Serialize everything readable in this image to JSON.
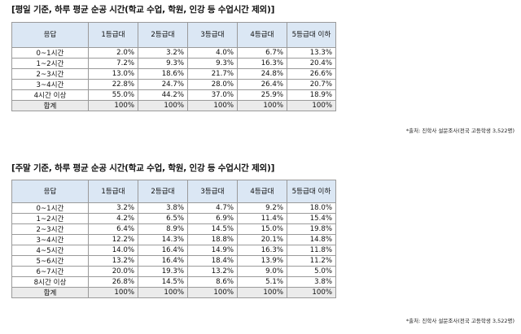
{
  "table1": {
    "title": "[평일 기준, 하루 평균 순공 시간(학교 수업, 학원, 인강 등 수업시간 제외)]",
    "headers": [
      "응답",
      "1등급대",
      "2등급대",
      "3등급대",
      "4등급대",
      "5등급대 이하"
    ],
    "rows": [
      {
        "label": "0~1시간",
        "values": [
          "2.0%",
          "3.2%",
          "4.0%",
          "6.7%",
          "13.3%"
        ]
      },
      {
        "label": "1~2시간",
        "values": [
          "7.2%",
          "9.3%",
          "9.3%",
          "16.3%",
          "20.4%"
        ]
      },
      {
        "label": "2~3시간",
        "values": [
          "13.0%",
          "18.6%",
          "21.7%",
          "24.8%",
          "26.6%"
        ]
      },
      {
        "label": "3~4시간",
        "values": [
          "22.8%",
          "24.7%",
          "28.0%",
          "26.4%",
          "20.7%"
        ]
      },
      {
        "label": "4시간 이상",
        "values": [
          "55.0%",
          "44.2%",
          "37.0%",
          "25.9%",
          "18.9%"
        ]
      }
    ],
    "total": {
      "label": "합계",
      "values": [
        "100%",
        "100%",
        "100%",
        "100%",
        "100%"
      ]
    },
    "source": "*출처: 진학사 설문조사(전국 고등학생 3,522명)"
  },
  "table2": {
    "title": "[주말 기준, 하루 평균 순공 시간(학교 수업, 학원, 인강 등 수업시간 제외)]",
    "headers": [
      "응답",
      "1등급대",
      "2등급대",
      "3등급대",
      "4등급대",
      "5등급대 이하"
    ],
    "rows": [
      {
        "label": "0~1시간",
        "values": [
          "3.2%",
          "3.8%",
          "4.7%",
          "9.2%",
          "18.0%"
        ]
      },
      {
        "label": "1~2시간",
        "values": [
          "4.2%",
          "6.5%",
          "6.9%",
          "11.4%",
          "15.4%"
        ]
      },
      {
        "label": "2~3시간",
        "values": [
          "6.4%",
          "8.9%",
          "14.5%",
          "15.0%",
          "19.8%"
        ]
      },
      {
        "label": "3~4시간",
        "values": [
          "12.2%",
          "14.3%",
          "18.8%",
          "20.1%",
          "14.8%"
        ]
      },
      {
        "label": "4~5시간",
        "values": [
          "14.0%",
          "16.4%",
          "14.9%",
          "16.3%",
          "11.8%"
        ]
      },
      {
        "label": "5~6시간",
        "values": [
          "13.2%",
          "16.4%",
          "18.4%",
          "13.9%",
          "11.2%"
        ]
      },
      {
        "label": "6~7시간",
        "values": [
          "20.0%",
          "19.3%",
          "13.2%",
          "9.0%",
          "5.0%"
        ]
      },
      {
        "label": "8시간 이상",
        "values": [
          "26.8%",
          "14.5%",
          "8.6%",
          "5.1%",
          "3.8%"
        ]
      }
    ],
    "total": {
      "label": "합계",
      "values": [
        "100%",
        "100%",
        "100%",
        "100%",
        "100%"
      ]
    },
    "source": "*출처: 진학사 설문조사(전국 고등학생 3,522명)"
  }
}
